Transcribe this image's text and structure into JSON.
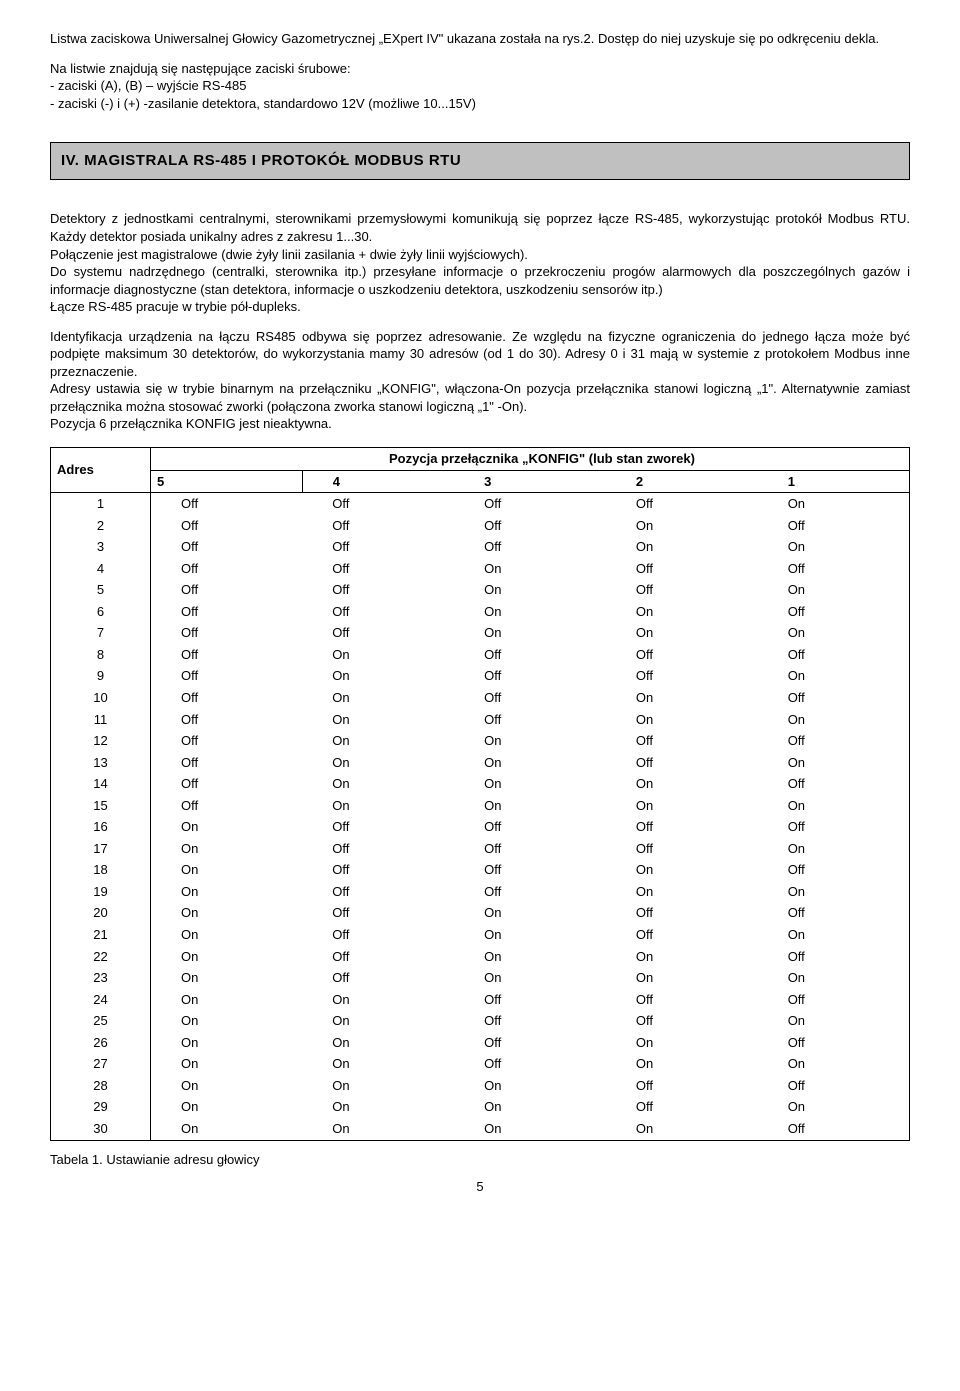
{
  "intro": {
    "p1": "Listwa zaciskowa Uniwersalnej Głowicy Gazometrycznej „EXpert IV\" ukazana została na rys.2. Dostęp do niej uzyskuje się po odkręceniu dekla.",
    "p2": "Na listwie znajdują się  następujące zaciski śrubowe:",
    "b1": "- zaciski  (A), (B) – wyjście RS-485",
    "b2": "- zaciski (-) i (+)  -zasilanie detektora, standardowo 12V (możliwe 10...15V)"
  },
  "section_title": "IV.  MAGISTRALA  RS-485  I  PROTOKÓŁ  MODBUS  RTU",
  "body": {
    "p1": "Detektory z jednostkami centralnymi, sterownikami przemysłowymi komunikują się poprzez łącze RS-485, wykorzystując protokół Modbus RTU. Każdy detektor posiada unikalny adres z zakresu 1...30.",
    "p2": "Połączenie  jest  magistralowe (dwie żyły linii zasilania + dwie żyły linii wyjściowych).",
    "p3": "Do systemu nadrzędnego (centralki, sterownika itp.) przesyłane informacje o przekroczeniu progów alarmowych dla poszczególnych gazów i  informacje diagnostyczne (stan detektora, informacje o uszkodzeniu detektora, uszkodzeniu sensorów itp.)",
    "p4": "Łącze   RS-485  pracuje w trybie pół-dupleks.",
    "p5": "Identyfikacja urządzenia na łączu RS485 odbywa się poprzez adresowanie. Ze względu na fizyczne ograniczenia do jednego łącza może być podpięte maksimum 30 detektorów, do wykorzystania mamy  30 adresów (od 1 do 30). Adresy 0 i 31 mają w systemie z protokołem Modbus inne przeznaczenie.",
    "p6": "Adresy ustawia się w trybie binarnym na przełączniku „KONFIG\", włączona-On pozycja przełącznika stanowi logiczną „1\". Alternatywnie zamiast przełącznika  można stosować zworki (połączona zworka stanowi logiczną „1\" -On).",
    "p7": "Pozycja 6 przełącznika KONFIG jest nieaktywna."
  },
  "table": {
    "header_addr": "Adres",
    "header_super": "Pozycja  przełącznika  „KONFIG\"  (lub stan zworek)",
    "cols": [
      "5",
      "4",
      "3",
      "2",
      "1"
    ],
    "rows": [
      {
        "a": "1",
        "v": [
          "Off",
          "Off",
          "Off",
          "Off",
          "On"
        ]
      },
      {
        "a": "2",
        "v": [
          "Off",
          "Off",
          "Off",
          "On",
          "Off"
        ]
      },
      {
        "a": "3",
        "v": [
          "Off",
          "Off",
          "Off",
          "On",
          "On"
        ]
      },
      {
        "a": "4",
        "v": [
          "Off",
          "Off",
          "On",
          "Off",
          "Off"
        ]
      },
      {
        "a": "5",
        "v": [
          "Off",
          "Off",
          "On",
          "Off",
          "On"
        ]
      },
      {
        "a": "6",
        "v": [
          "Off",
          "Off",
          "On",
          "On",
          "Off"
        ]
      },
      {
        "a": "7",
        "v": [
          "Off",
          "Off",
          "On",
          "On",
          "On"
        ]
      },
      {
        "a": "8",
        "v": [
          "Off",
          "On",
          "Off",
          "Off",
          "Off"
        ]
      },
      {
        "a": "9",
        "v": [
          "Off",
          "On",
          "Off",
          "Off",
          "On"
        ]
      },
      {
        "a": "10",
        "v": [
          "Off",
          "On",
          "Off",
          "On",
          "Off"
        ]
      },
      {
        "a": "11",
        "v": [
          "Off",
          "On",
          "Off",
          "On",
          "On"
        ]
      },
      {
        "a": "12",
        "v": [
          "Off",
          "On",
          "On",
          "Off",
          "Off"
        ]
      },
      {
        "a": "13",
        "v": [
          "Off",
          "On",
          "On",
          "Off",
          "On"
        ]
      },
      {
        "a": "14",
        "v": [
          "Off",
          "On",
          "On",
          "On",
          "Off"
        ]
      },
      {
        "a": "15",
        "v": [
          "Off",
          "On",
          "On",
          "On",
          "On"
        ]
      },
      {
        "a": "16",
        "v": [
          "On",
          "Off",
          "Off",
          "Off",
          "Off"
        ]
      },
      {
        "a": "17",
        "v": [
          "On",
          "Off",
          "Off",
          "Off",
          "On"
        ]
      },
      {
        "a": "18",
        "v": [
          "On",
          "Off",
          "Off",
          "On",
          "Off"
        ]
      },
      {
        "a": "19",
        "v": [
          "On",
          "Off",
          "Off",
          "On",
          "On"
        ]
      },
      {
        "a": "20",
        "v": [
          "On",
          "Off",
          "On",
          "Off",
          "Off"
        ]
      },
      {
        "a": "21",
        "v": [
          "On",
          "Off",
          "On",
          "Off",
          "On"
        ]
      },
      {
        "a": "22",
        "v": [
          "On",
          "Off",
          "On",
          "On",
          "Off"
        ]
      },
      {
        "a": "23",
        "v": [
          "On",
          "Off",
          "On",
          "On",
          "On"
        ]
      },
      {
        "a": "24",
        "v": [
          "On",
          "On",
          "Off",
          "Off",
          "Off"
        ]
      },
      {
        "a": "25",
        "v": [
          "On",
          "On",
          "Off",
          "Off",
          "On"
        ]
      },
      {
        "a": "26",
        "v": [
          "On",
          "On",
          "Off",
          "On",
          "Off"
        ]
      },
      {
        "a": "27",
        "v": [
          "On",
          "On",
          "Off",
          "On",
          "On"
        ]
      },
      {
        "a": "28",
        "v": [
          "On",
          "On",
          "On",
          "Off",
          "Off"
        ]
      },
      {
        "a": "29",
        "v": [
          "On",
          "On",
          "On",
          "Off",
          "On"
        ]
      },
      {
        "a": "30",
        "v": [
          "On",
          "On",
          "On",
          "On",
          "Off"
        ]
      }
    ],
    "caption": "Tabela 1. Ustawianie adresu głowicy"
  },
  "page_number": "5"
}
